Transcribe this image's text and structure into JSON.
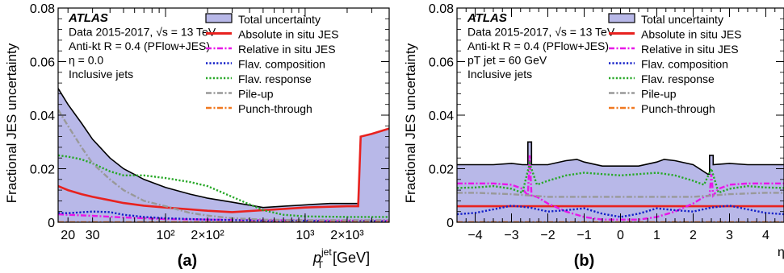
{
  "chart_data": [
    {
      "type": "area",
      "panel_label": "(a)",
      "ylabel": "Fractional JES uncertainty",
      "xlabel_main": "p",
      "xlabel_super": "jet",
      "xlabel_sub": "T",
      "xlabel_unit": "[GeV]",
      "xscale": "log",
      "xlim": [
        17,
        4000
      ],
      "ylim": [
        0,
        0.08
      ],
      "yticks": [
        "0",
        "0.02",
        "0.04",
        "0.06",
        "0.08"
      ],
      "xtick_labels": [
        {
          "x": 20,
          "label": "20"
        },
        {
          "x": 30,
          "label": "30"
        },
        {
          "x": 100,
          "label": "10²"
        },
        {
          "x": 200,
          "label": "2×10²"
        },
        {
          "x": 1000,
          "label": "10³"
        },
        {
          "x": 2000,
          "label": "2×10³"
        }
      ],
      "annotations": {
        "experiment": "ATLAS",
        "line1": "Data 2015-2017, √s = 13 TeV",
        "line2": "Anti-kt R = 0.4 (PFlow+JES)",
        "line3": "η = 0.0",
        "line4": "Inclusive jets"
      },
      "legend_position": "top-right",
      "series": [
        {
          "name": "Total uncertainty",
          "style": "filled",
          "color": "#b8b8e8",
          "edge": "#000000",
          "x": [
            17,
            20,
            25,
            30,
            40,
            50,
            70,
            100,
            150,
            200,
            300,
            500,
            700,
            1000,
            1500,
            2000,
            2400,
            2500,
            3000,
            4000
          ],
          "y": [
            0.05,
            0.044,
            0.037,
            0.031,
            0.024,
            0.02,
            0.016,
            0.013,
            0.0105,
            0.009,
            0.0075,
            0.0055,
            0.006,
            0.0065,
            0.007,
            0.007,
            0.007,
            0.032,
            0.033,
            0.035
          ]
        },
        {
          "name": "Absolute in situ JES",
          "style": "solid",
          "color": "#e8221f",
          "x": [
            17,
            20,
            25,
            30,
            40,
            50,
            70,
            100,
            150,
            200,
            300,
            500,
            700,
            1000,
            1500,
            2000,
            2400,
            2500,
            3000,
            4000
          ],
          "y": [
            0.0135,
            0.012,
            0.0105,
            0.0095,
            0.0082,
            0.0072,
            0.0062,
            0.0055,
            0.0048,
            0.0043,
            0.0038,
            0.0045,
            0.005,
            0.0055,
            0.0058,
            0.006,
            0.006,
            0.032,
            0.033,
            0.035
          ]
        },
        {
          "name": "Relative in situ JES",
          "style": "dashdot",
          "color": "#e817e8",
          "x": [
            17,
            20,
            30,
            50,
            100,
            200,
            500,
            1000,
            2000,
            4000
          ],
          "y": [
            0.003,
            0.0028,
            0.0024,
            0.0018,
            0.0012,
            0.001,
            0.0008,
            0.0007,
            0.0006,
            0.0006
          ]
        },
        {
          "name": "Flav. composition",
          "style": "dotted",
          "color": "#1420c8",
          "x": [
            17,
            20,
            30,
            40,
            50,
            70,
            100,
            200,
            500,
            1000,
            2000,
            4000
          ],
          "y": [
            0.0035,
            0.0034,
            0.004,
            0.0038,
            0.0028,
            0.002,
            0.0015,
            0.001,
            0.0006,
            0.0005,
            0.0004,
            0.0004
          ]
        },
        {
          "name": "Flav. response",
          "style": "dotted",
          "color": "#28a828",
          "x": [
            17,
            20,
            25,
            30,
            40,
            50,
            70,
            100,
            150,
            200,
            300,
            500,
            700,
            1000,
            2000,
            4000
          ],
          "y": [
            0.025,
            0.0245,
            0.0235,
            0.022,
            0.019,
            0.0175,
            0.0175,
            0.0165,
            0.015,
            0.0135,
            0.0095,
            0.0045,
            0.0028,
            0.0022,
            0.002,
            0.002
          ]
        },
        {
          "name": "Pile-up",
          "style": "dashdot",
          "color": "#999999",
          "x": [
            17,
            20,
            25,
            30,
            40,
            50,
            70,
            100,
            150,
            200,
            300,
            500,
            1000,
            4000
          ],
          "y": [
            0.042,
            0.036,
            0.028,
            0.022,
            0.016,
            0.012,
            0.008,
            0.006,
            0.0035,
            0.0025,
            0.0015,
            0.001,
            0.0008,
            0.0008
          ]
        },
        {
          "name": "Punch-through",
          "style": "dashdot",
          "color": "#f07820",
          "x": [
            17,
            4000
          ],
          "y": [
            0.0,
            0.0
          ]
        }
      ]
    },
    {
      "type": "area",
      "panel_label": "(b)",
      "ylabel": "Fractional JES uncertainty",
      "xlabel_main": "η",
      "xlim": [
        -4.5,
        4.5
      ],
      "ylim": [
        0,
        0.08
      ],
      "yticks": [
        "0",
        "0.02",
        "0.04",
        "0.06",
        "0.08"
      ],
      "xtick_labels": [
        {
          "x": -4,
          "label": "−4"
        },
        {
          "x": -3,
          "label": "−3"
        },
        {
          "x": -2,
          "label": "−2"
        },
        {
          "x": -1,
          "label": "−1"
        },
        {
          "x": 0,
          "label": "0"
        },
        {
          "x": 1,
          "label": "1"
        },
        {
          "x": 2,
          "label": "2"
        },
        {
          "x": 3,
          "label": "3"
        },
        {
          "x": 4,
          "label": "4"
        }
      ],
      "annotations": {
        "experiment": "ATLAS",
        "line1": "Data 2015-2017, √s = 13 TeV",
        "line2": "Anti-kt R = 0.4 (PFlow+JES)",
        "line3": "pT jet = 60 GeV",
        "line4": "Inclusive jets"
      },
      "legend_position": "top-right",
      "series": [
        {
          "name": "Total uncertainty",
          "style": "filled",
          "color": "#b8b8e8",
          "edge": "#000000",
          "x": [
            -4.5,
            -4.0,
            -3.5,
            -3.0,
            -2.7,
            -2.55,
            -2.55,
            -2.45,
            -2.45,
            -2.3,
            -2.0,
            -1.5,
            -1.2,
            -1.0,
            -0.5,
            0.0,
            0.5,
            1.0,
            1.2,
            1.5,
            2.0,
            2.4,
            2.45,
            2.45,
            2.55,
            2.55,
            3.0,
            3.5,
            4.0,
            4.5
          ],
          "y": [
            0.0215,
            0.0215,
            0.0215,
            0.022,
            0.0215,
            0.0215,
            0.03,
            0.03,
            0.0215,
            0.0215,
            0.0215,
            0.023,
            0.0235,
            0.0225,
            0.021,
            0.021,
            0.021,
            0.0225,
            0.0235,
            0.023,
            0.0215,
            0.018,
            0.018,
            0.025,
            0.025,
            0.0215,
            0.022,
            0.0215,
            0.0215,
            0.0215
          ]
        },
        {
          "name": "Absolute in situ JES",
          "style": "solid",
          "color": "#e8221f",
          "x": [
            -4.5,
            4.5
          ],
          "y": [
            0.006,
            0.006
          ]
        },
        {
          "name": "Relative in situ JES",
          "style": "dashdot",
          "color": "#e817e8",
          "x": [
            -4.5,
            -3.5,
            -3.0,
            -2.7,
            -2.55,
            -2.5,
            -2.45,
            -2.3,
            -2.0,
            -1.5,
            -1.0,
            -0.5,
            0.0,
            0.5,
            1.0,
            1.5,
            2.0,
            2.3,
            2.45,
            2.5,
            2.55,
            2.7,
            3.0,
            3.5,
            4.5
          ],
          "y": [
            0.0145,
            0.0145,
            0.014,
            0.0125,
            0.01,
            0.025,
            0.01,
            0.0095,
            0.007,
            0.004,
            0.002,
            0.001,
            0.001,
            0.001,
            0.002,
            0.004,
            0.007,
            0.0095,
            0.01,
            0.018,
            0.01,
            0.0125,
            0.014,
            0.0145,
            0.0145
          ]
        },
        {
          "name": "Flav. composition",
          "style": "dotted",
          "color": "#1420c8",
          "x": [
            -4.5,
            -4.0,
            -3.5,
            -3.0,
            -2.5,
            -2.0,
            -1.5,
            -1.0,
            -0.5,
            0.0,
            0.5,
            1.0,
            1.5,
            2.0,
            2.5,
            3.0,
            3.5,
            4.0,
            4.5
          ],
          "y": [
            0.003,
            0.0035,
            0.0048,
            0.0062,
            0.0055,
            0.004,
            0.0045,
            0.0052,
            0.0032,
            0.002,
            0.0032,
            0.0052,
            0.0045,
            0.004,
            0.0055,
            0.0062,
            0.0048,
            0.0035,
            0.003
          ]
        },
        {
          "name": "Flav. response",
          "style": "dotted",
          "color": "#28a828",
          "x": [
            -4.5,
            -4.0,
            -3.5,
            -3.0,
            -2.7,
            -2.5,
            -2.3,
            -2.0,
            -1.5,
            -1.0,
            -0.5,
            0.0,
            0.5,
            1.0,
            1.5,
            2.0,
            2.3,
            2.5,
            2.7,
            3.0,
            3.5,
            4.0,
            4.5
          ],
          "y": [
            0.0128,
            0.013,
            0.0135,
            0.0125,
            0.011,
            0.022,
            0.014,
            0.0155,
            0.0175,
            0.0185,
            0.018,
            0.0175,
            0.018,
            0.0185,
            0.0175,
            0.0155,
            0.014,
            0.02,
            0.011,
            0.0125,
            0.0135,
            0.013,
            0.0128
          ]
        },
        {
          "name": "Pile-up",
          "style": "dashdot",
          "color": "#999999",
          "x": [
            -4.5,
            -4.0,
            -3.0,
            -2.0,
            -1.0,
            0.0,
            1.0,
            2.0,
            3.0,
            4.0,
            4.5
          ],
          "y": [
            0.011,
            0.011,
            0.0105,
            0.0095,
            0.0095,
            0.0095,
            0.0095,
            0.0095,
            0.0105,
            0.011,
            0.011
          ]
        },
        {
          "name": "Punch-through",
          "style": "dashdot",
          "color": "#f07820",
          "x": [
            -4.5,
            4.5
          ],
          "y": [
            0.0,
            0.0
          ]
        }
      ]
    }
  ]
}
